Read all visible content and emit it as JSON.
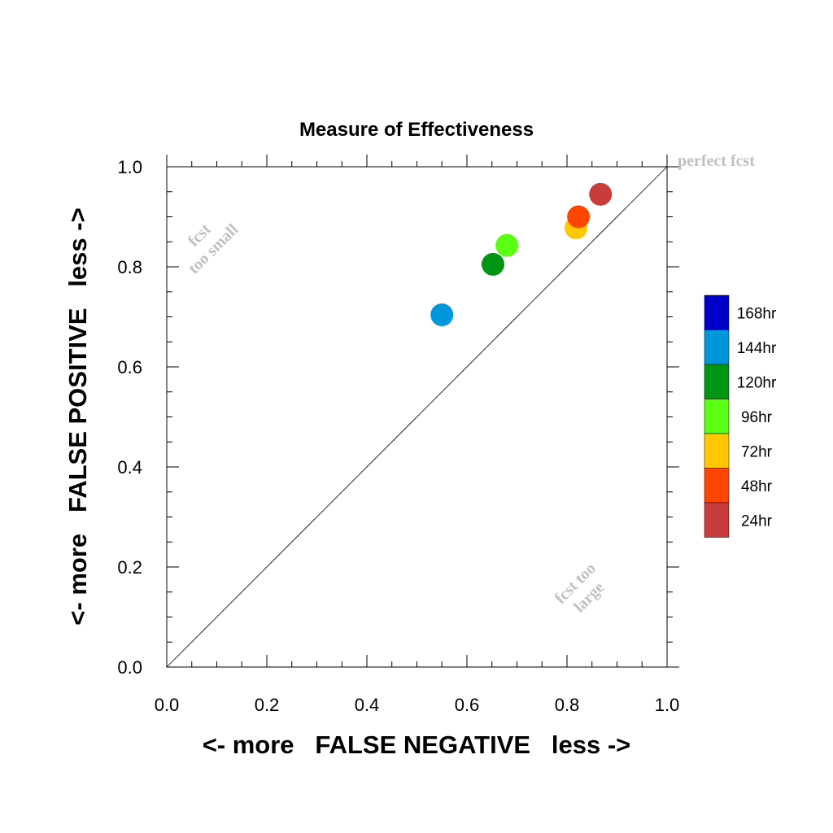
{
  "chart_data": {
    "type": "scatter",
    "title": "Measure of Effectiveness",
    "xlabel": "<- more   FALSE NEGATIVE   less ->",
    "ylabel": "<- more   FALSE POSITIVE   less ->",
    "xlim": [
      0,
      1
    ],
    "ylim": [
      0,
      1
    ],
    "xticks": [
      "0.0",
      "0.2",
      "0.4",
      "0.6",
      "0.8",
      "1.0"
    ],
    "yticks": [
      "0.0",
      "0.2",
      "0.4",
      "0.6",
      "0.8",
      "1.0"
    ],
    "grid": false,
    "legend_position": "right",
    "reference_line": {
      "from": [
        0,
        0
      ],
      "to": [
        1,
        1
      ]
    },
    "annotations": {
      "perfect": "perfect fcst",
      "too_small_line1": "fcst",
      "too_small_line2": "too small",
      "too_large_line1": "fcst too",
      "too_large_line2": "large"
    },
    "legend": [
      {
        "label": "168hr",
        "color": "#0000c8"
      },
      {
        "label": "144hr",
        "color": "#0096dc"
      },
      {
        "label": "120hr",
        "color": "#009614"
      },
      {
        "label": "96hr",
        "color": "#5aff14"
      },
      {
        "label": "72hr",
        "color": "#ffc800"
      },
      {
        "label": "48hr",
        "color": "#ff4600"
      },
      {
        "label": "24hr",
        "color": "#c83c3c"
      }
    ],
    "points": [
      {
        "label": "144hr",
        "x": 0.55,
        "y": 0.704,
        "color": "#0096dc"
      },
      {
        "label": "120hr",
        "x": 0.652,
        "y": 0.805,
        "color": "#009614"
      },
      {
        "label": "96hr",
        "x": 0.68,
        "y": 0.843,
        "color": "#5aff14"
      },
      {
        "label": "72hr",
        "x": 0.818,
        "y": 0.878,
        "color": "#ffc800"
      },
      {
        "label": "48hr",
        "x": 0.823,
        "y": 0.9,
        "color": "#ff4600"
      },
      {
        "label": "24hr",
        "x": 0.867,
        "y": 0.945,
        "color": "#c83c3c"
      }
    ]
  }
}
